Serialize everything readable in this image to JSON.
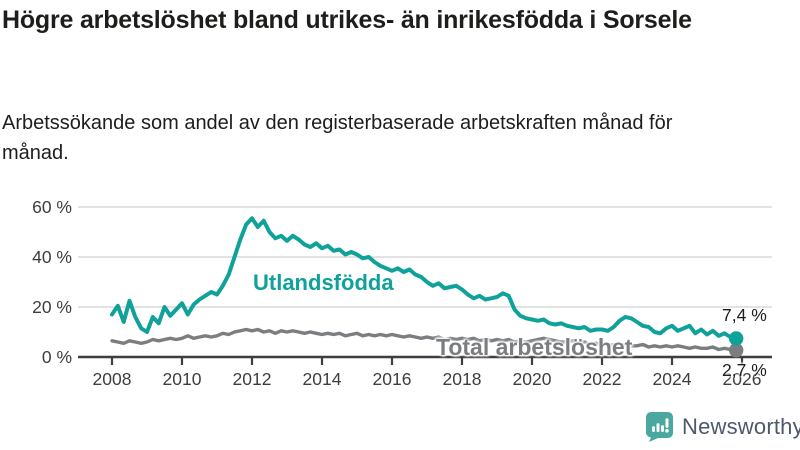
{
  "header": {
    "title": "Högre arbetslöshet bland utrikes- än inrikesfödda i Sorsele",
    "subtitle": "Arbetssökande som andel av den registerbaserade arbetskraften månad för månad."
  },
  "chart_data": {
    "type": "line",
    "title": "",
    "xlabel": "",
    "ylabel": "",
    "x_start": 2008.0,
    "x_step": 0.16667,
    "ylim": [
      0,
      60
    ],
    "yticks": [
      0,
      20,
      40,
      60
    ],
    "ytick_labels": [
      "0 %",
      "20 %",
      "40 %",
      "60 %"
    ],
    "xticks": [
      2008,
      2010,
      2012,
      2014,
      2016,
      2018,
      2020,
      2022,
      2024,
      2026
    ],
    "grid": true,
    "legend_position": "inline-labels",
    "series": [
      {
        "name": "Utlandsfödda",
        "color": "#10a29a",
        "end_label": "7,4 %",
        "end_value": 7.4,
        "values": [
          17.0,
          20.5,
          14.0,
          22.5,
          16.0,
          11.5,
          10.0,
          16.0,
          13.5,
          20.0,
          16.5,
          19.0,
          21.5,
          17.0,
          21.0,
          23.0,
          24.5,
          26.0,
          25.0,
          28.5,
          33.0,
          40.0,
          47.0,
          53.0,
          55.5,
          52.0,
          54.5,
          50.0,
          47.5,
          48.5,
          46.5,
          48.5,
          47.0,
          45.0,
          44.0,
          45.5,
          43.5,
          44.5,
          42.5,
          43.0,
          41.0,
          42.0,
          41.0,
          39.5,
          40.0,
          38.0,
          36.5,
          35.5,
          34.5,
          35.5,
          34.0,
          35.0,
          33.0,
          32.0,
          30.0,
          28.5,
          29.5,
          27.5,
          28.0,
          28.5,
          27.0,
          25.0,
          23.5,
          24.5,
          23.0,
          23.5,
          24.0,
          25.5,
          24.5,
          19.0,
          16.5,
          15.5,
          15.0,
          14.5,
          15.0,
          13.5,
          13.0,
          13.5,
          12.5,
          12.0,
          11.5,
          12.0,
          10.5,
          11.0,
          11.0,
          10.5,
          12.0,
          14.5,
          16.0,
          15.5,
          14.0,
          12.5,
          12.0,
          10.0,
          9.5,
          11.5,
          12.5,
          10.5,
          11.5,
          12.5,
          9.5,
          11.0,
          9.0,
          10.5,
          8.5,
          9.5,
          8.0,
          7.4
        ]
      },
      {
        "name": "Total arbetslöshet",
        "color": "#7b7e81",
        "end_label": "2,7 %",
        "end_value": 2.7,
        "values": [
          6.5,
          6.0,
          5.5,
          6.5,
          6.0,
          5.5,
          6.0,
          7.0,
          6.5,
          7.0,
          7.5,
          7.0,
          7.5,
          8.5,
          7.5,
          8.0,
          8.5,
          8.0,
          8.5,
          9.5,
          9.0,
          10.0,
          10.5,
          11.0,
          10.5,
          11.0,
          10.0,
          10.5,
          9.5,
          10.5,
          10.0,
          10.5,
          10.0,
          9.5,
          10.0,
          9.5,
          9.0,
          9.5,
          9.0,
          9.5,
          8.5,
          9.0,
          9.5,
          8.5,
          9.0,
          8.5,
          9.0,
          8.5,
          9.0,
          8.5,
          8.0,
          8.5,
          8.0,
          7.5,
          8.0,
          7.5,
          8.0,
          7.0,
          7.5,
          7.0,
          7.5,
          7.0,
          7.5,
          6.5,
          7.0,
          6.5,
          7.0,
          6.5,
          7.0,
          6.0,
          6.5,
          6.0,
          6.5,
          7.0,
          7.5,
          7.0,
          6.5,
          6.0,
          6.0,
          6.5,
          5.5,
          6.0,
          5.0,
          5.5,
          5.0,
          4.5,
          5.0,
          4.5,
          5.0,
          4.5,
          4.5,
          5.0,
          4.0,
          4.5,
          4.0,
          4.5,
          4.0,
          4.5,
          4.0,
          3.5,
          4.0,
          3.5,
          3.5,
          4.0,
          3.0,
          3.5,
          3.0,
          2.7
        ]
      }
    ]
  },
  "colors": {
    "grid": "#d8d8d8",
    "axis": "#3e3e3d",
    "tick_text": "#3d3d3c",
    "title_text": "#1d1d1b"
  },
  "footer": {
    "brand": "Newsworthy",
    "brand_text_color": "#4d596a",
    "logo_color": "#4aa8a1"
  }
}
